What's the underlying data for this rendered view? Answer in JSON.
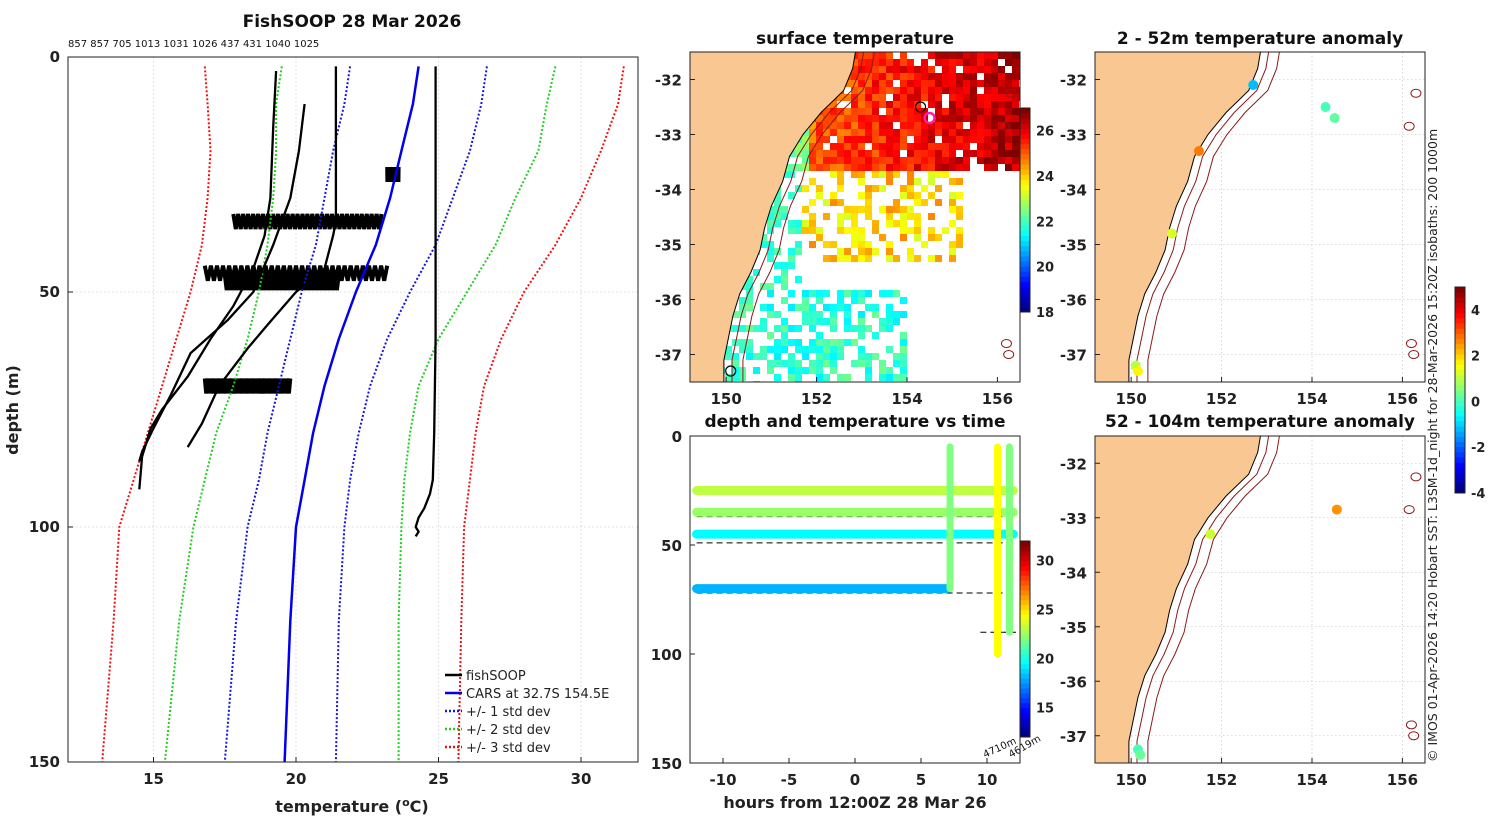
{
  "figure": {
    "title": "FishSOOP 28 Mar 2026",
    "footer_text": "© IMOS 01-Apr-2026 14:20 Hobart SST: L3SM-1d_night for 28-Mar-2026 15:20Z isobaths: 200  1000m",
    "serial_numbers": "857 857 705 1013 1031 1026 437 431 1040 1025"
  },
  "colors": {
    "land": "#f9c792",
    "fishsoop": "#000000",
    "cars": "#0000ee",
    "std1": "#1414e0",
    "std2": "#22cc22",
    "std3": "#ee1111",
    "isobath": "#8b1a1a",
    "highlight_ring": "#ff1aa8"
  },
  "chart_data": [
    {
      "id": "profile",
      "type": "line",
      "title": "FishSOOP 28 Mar 2026",
      "xlabel": "temperature (°C)",
      "ylabel": "depth (m)",
      "xlim": [
        12,
        32
      ],
      "ylim": [
        150,
        0
      ],
      "xticks": [
        15,
        20,
        25,
        30
      ],
      "yticks": [
        0,
        50,
        100,
        150
      ],
      "legend_position": "bottom-right",
      "legend": [
        "fishSOOP",
        "CARS at 32.7S 154.5E",
        "+/- 1 std dev",
        "+/- 2 std dev",
        "+/- 3 std dev"
      ],
      "series": [
        {
          "name": "CARS mean",
          "kind": "cars",
          "t": [
            24.3,
            24.1,
            23.7,
            23.3,
            22.8,
            22.1,
            21.5,
            21.0,
            20.6,
            20.3,
            20.0,
            19.8,
            19.6
          ],
          "z": [
            2,
            10,
            20,
            30,
            40,
            50,
            60,
            70,
            80,
            90,
            100,
            120,
            150
          ]
        },
        {
          "name": "+1 std",
          "kind": "std1",
          "t": [
            26.7,
            26.5,
            26.1,
            25.5,
            24.9,
            24.0,
            23.2,
            22.6,
            22.2,
            21.9,
            21.7,
            21.5,
            21.4
          ],
          "z": [
            2,
            10,
            20,
            30,
            40,
            50,
            60,
            70,
            80,
            90,
            100,
            120,
            150
          ]
        },
        {
          "name": "-1 std",
          "kind": "std1",
          "t": [
            21.9,
            21.7,
            21.3,
            21.0,
            20.7,
            20.2,
            19.8,
            19.4,
            19.0,
            18.7,
            18.3,
            17.9,
            17.5
          ],
          "z": [
            2,
            10,
            20,
            30,
            40,
            50,
            60,
            70,
            80,
            90,
            100,
            120,
            150
          ]
        },
        {
          "name": "+2 std",
          "kind": "std2",
          "t": [
            29.1,
            28.8,
            28.5,
            27.7,
            27.0,
            26.0,
            25.0,
            24.3,
            24.0,
            23.8,
            23.7,
            23.6,
            23.6
          ],
          "z": [
            2,
            10,
            20,
            30,
            40,
            50,
            60,
            70,
            80,
            90,
            100,
            120,
            150
          ]
        },
        {
          "name": "-2 std",
          "kind": "std2",
          "t": [
            19.5,
            19.3,
            19.3,
            19.2,
            19.0,
            18.7,
            18.3,
            17.8,
            17.2,
            16.8,
            16.4,
            15.9,
            15.4
          ],
          "z": [
            2,
            10,
            20,
            30,
            40,
            50,
            60,
            70,
            80,
            90,
            100,
            120,
            150
          ]
        },
        {
          "name": "+3 std",
          "kind": "std3",
          "t": [
            31.5,
            31.3,
            30.7,
            30.0,
            29.1,
            28.0,
            27.2,
            26.6,
            26.3,
            26.1,
            25.9,
            25.8,
            25.7
          ],
          "z": [
            2,
            10,
            20,
            30,
            40,
            50,
            60,
            70,
            80,
            90,
            100,
            120,
            150
          ]
        },
        {
          "name": "-3 std",
          "kind": "std3",
          "t": [
            16.8,
            16.9,
            17.0,
            16.9,
            16.7,
            16.3,
            15.8,
            15.3,
            14.8,
            14.3,
            13.8,
            13.6,
            13.2
          ],
          "z": [
            2,
            10,
            20,
            30,
            40,
            50,
            60,
            70,
            80,
            90,
            100,
            120,
            150
          ]
        },
        {
          "name": "fishSOOP profile 1",
          "kind": "fishsoop",
          "t": [
            24.9,
            24.9,
            24.9,
            24.9,
            24.85,
            24.8,
            24.7,
            24.5,
            24.3,
            24.2,
            24.3,
            24.2
          ],
          "z": [
            2,
            20,
            40,
            60,
            80,
            90,
            93,
            96,
            98,
            100,
            101,
            102
          ]
        },
        {
          "name": "fishSOOP profile 2",
          "kind": "fishsoop",
          "t": [
            21.4,
            21.4,
            21.4,
            21.3,
            21.0,
            20.0,
            19.0,
            18.3,
            17.3,
            16.7,
            16.2
          ],
          "z": [
            2,
            20,
            35,
            38,
            45,
            50,
            57,
            62,
            70,
            78,
            83
          ]
        },
        {
          "name": "fishSOOP profile 3",
          "kind": "fishsoop",
          "t": [
            19.3,
            19.2,
            19.1,
            18.9,
            18.5,
            17.8,
            17.0,
            16.2,
            15.3,
            14.9,
            14.6,
            14.5
          ],
          "z": [
            3,
            15,
            30,
            38,
            45,
            53,
            60,
            68,
            75,
            79,
            85,
            92
          ]
        },
        {
          "name": "fishSOOP profile 4",
          "kind": "fishsoop",
          "t": [
            20.3,
            20.1,
            19.8,
            19.2,
            18.5,
            17.6,
            16.3,
            15.6,
            15.0,
            14.6,
            14.5
          ],
          "z": [
            10,
            20,
            30,
            40,
            50,
            56,
            63,
            72,
            79,
            84,
            86
          ]
        }
      ],
      "bands": [
        {
          "t0": 17.8,
          "t1": 23.0,
          "z": 35
        },
        {
          "t0": 16.8,
          "t1": 23.2,
          "z": 46
        },
        {
          "t0": 17.5,
          "t1": 21.5,
          "z": 48
        },
        {
          "t0": 16.8,
          "t1": 19.8,
          "z": 70
        },
        {
          "t0": 23.2,
          "t1": 23.6,
          "z": 25
        }
      ]
    },
    {
      "id": "sst_map",
      "type": "heatmap",
      "title": "surface temperature",
      "xlim": [
        149.2,
        156.5
      ],
      "ylim": [
        -37.5,
        -31.5
      ],
      "xticks": [
        150,
        152,
        154,
        156
      ],
      "yticks": [
        -32,
        -33,
        -34,
        -35,
        -36,
        -37
      ],
      "colorbar": {
        "min": 18,
        "max": 27,
        "ticks": [
          18,
          20,
          22,
          24,
          26
        ]
      },
      "markers": [
        {
          "lon": 154.3,
          "lat": -32.5,
          "ring": "black"
        },
        {
          "lon": 154.5,
          "lat": -32.7,
          "ring": "magenta"
        },
        {
          "lon": 150.1,
          "lat": -37.3,
          "ring": "black"
        }
      ]
    },
    {
      "id": "anomaly_2_52",
      "type": "scatter",
      "title": "2 - 52m temperature anomaly",
      "xlim": [
        149.2,
        156.5
      ],
      "ylim": [
        -37.5,
        -31.5
      ],
      "xticks": [
        150,
        152,
        154,
        156
      ],
      "yticks": [
        -32,
        -33,
        -34,
        -35,
        -36,
        -37
      ],
      "points": [
        {
          "lon": 152.7,
          "lat": -32.1,
          "anomaly": -1.2
        },
        {
          "lon": 154.3,
          "lat": -32.5,
          "anomaly": 0.0
        },
        {
          "lon": 154.5,
          "lat": -32.7,
          "anomaly": 0.2
        },
        {
          "lon": 151.5,
          "lat": -33.3,
          "anomaly": 2.8
        },
        {
          "lon": 150.9,
          "lat": -34.8,
          "anomaly": 0.3
        },
        {
          "lon": 150.9,
          "lat": -34.8,
          "anomaly": 1.3
        },
        {
          "lon": 150.1,
          "lat": -37.2,
          "anomaly": 1.0
        },
        {
          "lon": 150.15,
          "lat": -37.3,
          "anomaly": 1.7
        }
      ]
    },
    {
      "id": "anomaly_52_104",
      "type": "scatter",
      "title": "52 - 104m temperature anomaly",
      "xlim": [
        149.2,
        156.5
      ],
      "ylim": [
        -37.5,
        -31.5
      ],
      "xticks": [
        150,
        152,
        154,
        156
      ],
      "yticks": [
        -32,
        -33,
        -34,
        -35,
        -36,
        -37
      ],
      "colorbar": {
        "min": -4,
        "max": 5,
        "ticks": [
          -4,
          -2,
          0,
          2,
          4
        ]
      },
      "points": [
        {
          "lon": 154.55,
          "lat": -32.85,
          "anomaly": 2.6
        },
        {
          "lon": 151.75,
          "lat": -33.3,
          "anomaly": 1.2
        },
        {
          "lon": 150.15,
          "lat": -37.25,
          "anomaly": 0.0
        },
        {
          "lon": 150.2,
          "lat": -37.35,
          "anomaly": 0.3
        }
      ]
    },
    {
      "id": "depth_time",
      "type": "scatter",
      "title": "depth and temperature vs time",
      "xlabel": "hours from 12:00Z 28 Mar 26",
      "xlim": [
        -12.5,
        12.5
      ],
      "ylim": [
        150,
        0
      ],
      "xticks": [
        -10,
        -5,
        0,
        5,
        10
      ],
      "yticks": [
        0,
        50,
        100,
        150
      ],
      "colorbar": {
        "min": 12,
        "max": 32,
        "ticks": [
          15,
          20,
          25,
          30
        ]
      },
      "depth_labels": [
        "4710m",
        "4619m"
      ],
      "tows": [
        {
          "t0": -12,
          "t1": 12,
          "depth": 25,
          "temp": 23.2
        },
        {
          "t0": -12,
          "t1": 12,
          "depth": 35,
          "temp": 22.5
        },
        {
          "t0": -12,
          "t1": 12,
          "depth": 45,
          "temp": 19.5
        },
        {
          "t0": -12,
          "t1": 7,
          "depth": 70,
          "temp": 18.0
        }
      ],
      "reference_depths": [
        25,
        37,
        49,
        72,
        90
      ],
      "casts": [
        {
          "t": 7.2,
          "depth0": 5,
          "depth1": 70,
          "temp": 22.0
        },
        {
          "t": 10.8,
          "depth0": 5,
          "depth1": 100,
          "temp": 24.5
        },
        {
          "t": 11.7,
          "depth0": 5,
          "depth1": 90,
          "temp": 22.0
        }
      ]
    }
  ]
}
